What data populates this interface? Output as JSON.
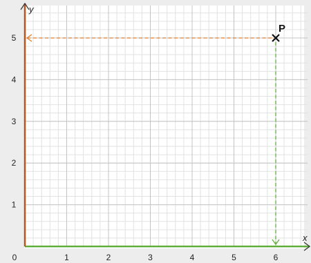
{
  "chart_data": {
    "type": "scatter",
    "title": "",
    "xlabel": "x",
    "ylabel": "y",
    "xlim": [
      0,
      6.5
    ],
    "ylim": [
      0,
      5.5
    ],
    "x_ticks": [
      "0",
      "1",
      "2",
      "3",
      "4",
      "5",
      "6"
    ],
    "y_ticks": [
      "1",
      "2",
      "3",
      "4",
      "5"
    ],
    "grid": true,
    "minor_grid_per_unit": 5,
    "points": [
      {
        "label": "P",
        "x": 6,
        "y": 5
      }
    ],
    "projection_lines": [
      {
        "target": "y-axis",
        "style": "dashed",
        "color": "#e07b28"
      },
      {
        "target": "x-axis",
        "style": "dashed",
        "color": "#5fae3a"
      }
    ],
    "colors": {
      "x_axis": "#5fae3a",
      "y_axis": "#b5561e",
      "grid_major": "#c4c4c4",
      "grid_minor": "#e2e2e2",
      "plot_background": "#ffffff",
      "page_background": "#ededed",
      "marker": "#111111"
    },
    "marker_icon": "x-marker-icon"
  }
}
